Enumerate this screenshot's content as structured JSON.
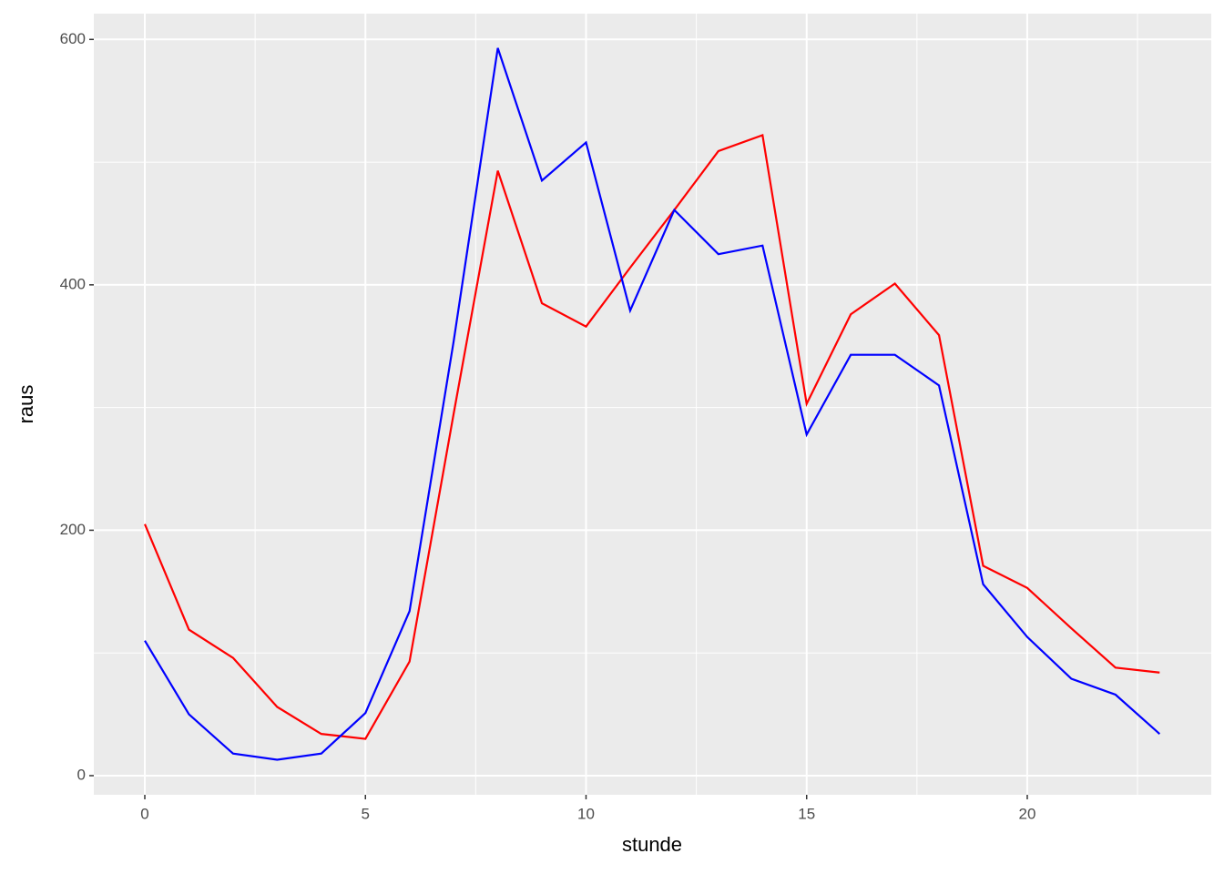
{
  "chart_data": {
    "type": "line",
    "x_label": "stunde",
    "y_label": "raus",
    "x": [
      0,
      1,
      2,
      3,
      4,
      5,
      6,
      7,
      8,
      9,
      10,
      11,
      12,
      13,
      14,
      15,
      16,
      17,
      18,
      19,
      20,
      21,
      22,
      23
    ],
    "series": [
      {
        "color": "#ff0000",
        "values": [
          205,
          119,
          96,
          56,
          34,
          30,
          93,
          295,
          493,
          385,
          366,
          414,
          461,
          509,
          522,
          303,
          376,
          401,
          359,
          171,
          153,
          120,
          88,
          84
        ]
      },
      {
        "color": "#0000ff",
        "values": [
          110,
          50,
          18,
          13,
          18,
          51,
          134,
          354,
          593,
          485,
          516,
          379,
          461,
          425,
          432,
          278,
          343,
          343,
          318,
          156,
          113,
          79,
          66,
          34
        ]
      }
    ],
    "xlim": [
      -1.156,
      24.17
    ],
    "ylim": [
      -15.6,
      621
    ],
    "xticks": [
      0,
      5,
      10,
      15,
      20
    ],
    "yticks": [
      0,
      200,
      400,
      600
    ],
    "x_minor_ticks": [
      2.5,
      7.5,
      12.5,
      17.5,
      22.5
    ],
    "y_minor_ticks": [
      100,
      300,
      500
    ],
    "grid": true
  }
}
